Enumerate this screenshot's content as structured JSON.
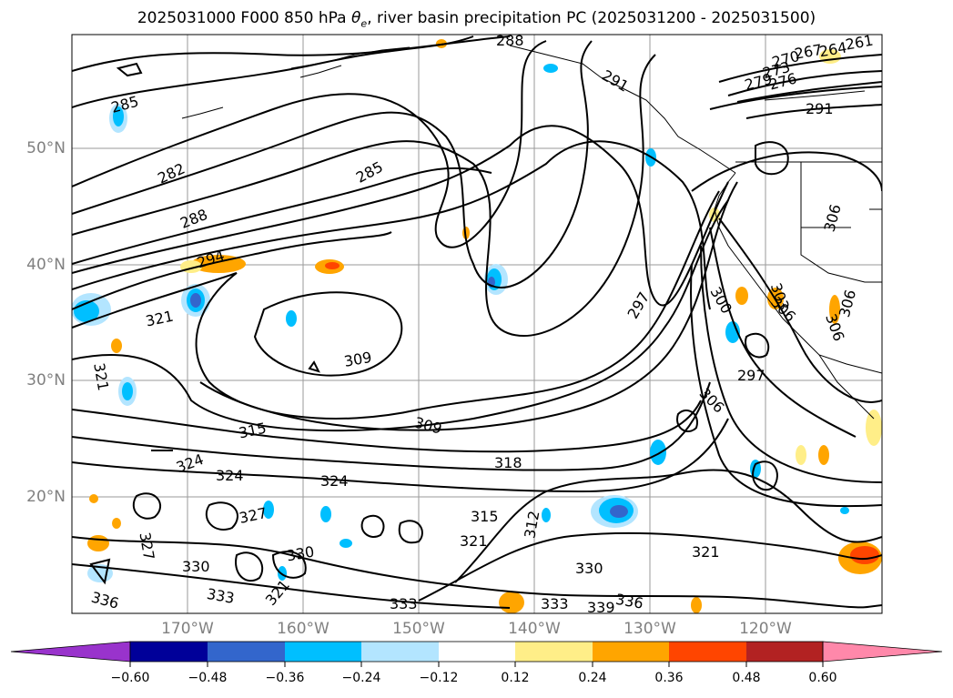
{
  "figure": {
    "title_prefix": "2025031000 F000 850 hPa ",
    "title_symbol": "θ",
    "title_subscript": "e",
    "title_suffix": ", river basin precipitation PC (2025031200 - 2025031500)"
  },
  "map": {
    "lat_labels": [
      "50°N",
      "40°N",
      "30°N",
      "20°N"
    ],
    "lon_labels": [
      "170°W",
      "160°W",
      "150°W",
      "140°W",
      "130°W",
      "120°W"
    ],
    "contour_labels": [
      "285",
      "282",
      "285",
      "288",
      "291",
      "294",
      "297",
      "300",
      "303",
      "306",
      "306",
      "309",
      "309",
      "312",
      "315",
      "315",
      "318",
      "321",
      "321",
      "321",
      "324",
      "324",
      "324",
      "327",
      "330",
      "330",
      "330",
      "333",
      "333",
      "333",
      "336",
      "339",
      "288",
      "267",
      "264",
      "261",
      "270",
      "273",
      "276",
      "279",
      "291",
      "321",
      "297",
      "306",
      "306",
      "306",
      "321",
      "327",
      "336"
    ]
  },
  "colorbar": {
    "tick_labels": [
      "−0.60",
      "−0.48",
      "−0.36",
      "−0.24",
      "−0.12",
      "0.12",
      "0.24",
      "0.36",
      "0.48",
      "0.60"
    ],
    "colors": [
      "#9933cc",
      "#000099",
      "#3366cc",
      "#00bfff",
      "#b3e5ff",
      "#ffffff",
      "#ffee88",
      "#ffa500",
      "#ff4500",
      "#b22222",
      "#ff88aa"
    ]
  }
}
